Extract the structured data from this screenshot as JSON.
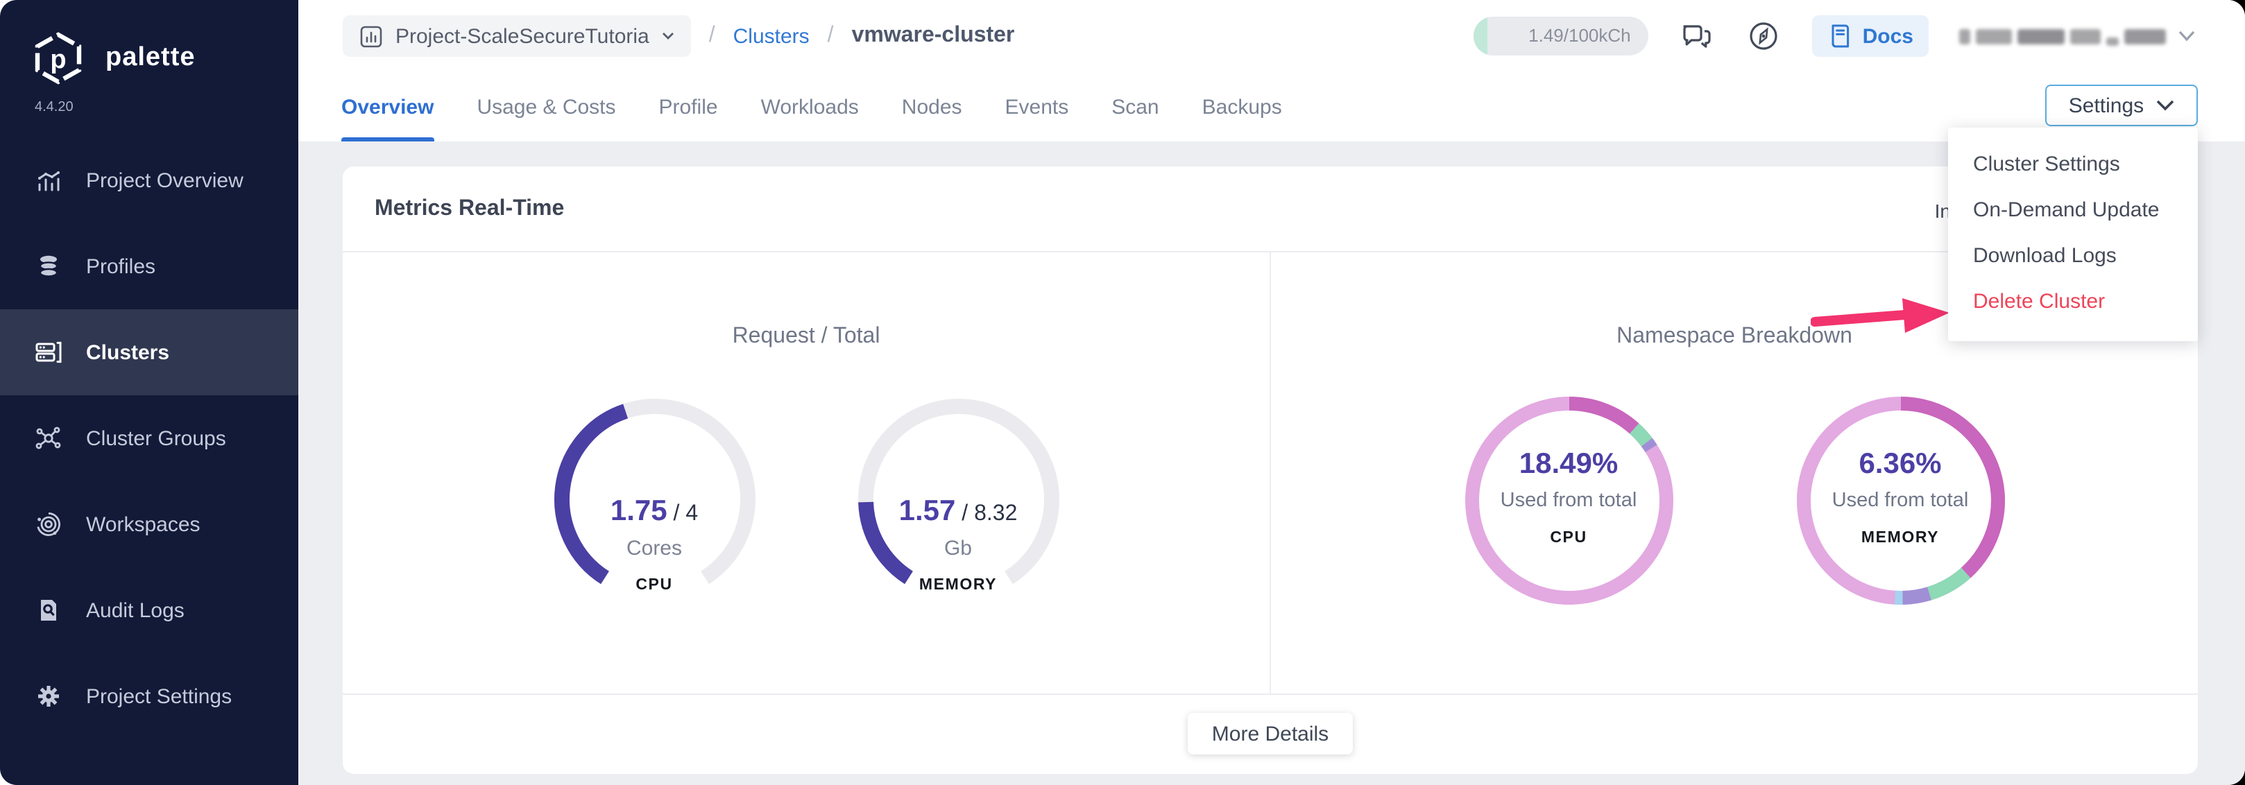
{
  "app": {
    "logo_text": "palette",
    "logo_letter": "p",
    "version": "4.4.20"
  },
  "sidebar": {
    "items": [
      {
        "label": "Project Overview",
        "icon": "bar-chart-icon"
      },
      {
        "label": "Profiles",
        "icon": "layers-icon"
      },
      {
        "label": "Clusters",
        "icon": "servers-icon"
      },
      {
        "label": "Cluster Groups",
        "icon": "nodes-icon"
      },
      {
        "label": "Workspaces",
        "icon": "orbit-icon"
      },
      {
        "label": "Audit Logs",
        "icon": "doc-search-icon"
      },
      {
        "label": "Project Settings",
        "icon": "gear-icon"
      }
    ],
    "active": "Clusters"
  },
  "topbar": {
    "breadcrumb": {
      "project": "Project-ScaleSecureTutoria",
      "sep": "/",
      "section": "Clusters",
      "cluster": "vmware-cluster"
    },
    "usage": "1.49/100kCh",
    "docs_label": "Docs"
  },
  "tabs": {
    "items": [
      "Overview",
      "Usage & Costs",
      "Profile",
      "Workloads",
      "Nodes",
      "Events",
      "Scan",
      "Backups"
    ],
    "active": "Overview"
  },
  "settings": {
    "button_label": "Settings",
    "menu": [
      {
        "label": "Cluster Settings",
        "danger": false
      },
      {
        "label": "On-Demand Update",
        "danger": false
      },
      {
        "label": "Download Logs",
        "danger": false
      },
      {
        "label": "Delete Cluster",
        "danger": true
      }
    ]
  },
  "metrics": {
    "card_title": "Metrics Real-Time",
    "partial_right_text": "In",
    "more_details_label": "More Details",
    "left_panel": {
      "title": "Request / Total",
      "gauges": [
        {
          "value": "1.75",
          "divider": "/",
          "total": "4",
          "unit": "Cores",
          "label": "CPU",
          "fraction": 0.4375
        },
        {
          "value": "1.57",
          "divider": "/",
          "total": "8.32",
          "unit": "Gb",
          "label": "MEMORY",
          "fraction": 0.189
        }
      ]
    },
    "right_panel": {
      "title": "Namespace Breakdown",
      "donuts": [
        {
          "percent": "18.49%",
          "subtitle": "Used from total",
          "label": "CPU",
          "segments": [
            {
              "color_key": "donut_magenta",
              "from": 0,
              "to": 42
            },
            {
              "color_key": "donut_green",
              "from": 42,
              "to": 53
            },
            {
              "color_key": "donut_lavender",
              "from": 53,
              "to": 57.5
            }
          ]
        },
        {
          "percent": "6.36%",
          "subtitle": "Used from total",
          "label": "MEMORY",
          "segments": [
            {
              "color_key": "donut_magenta",
              "from": 0,
              "to": 138
            },
            {
              "color_key": "donut_green",
              "from": 138,
              "to": 163
            },
            {
              "color_key": "donut_lavender",
              "from": 163,
              "to": 179
            },
            {
              "color_key": "donut_blue",
              "from": 179,
              "to": 183.5
            }
          ]
        }
      ]
    }
  },
  "colors": {
    "accent_blue": "#2e6fd2",
    "gauge_fill": "#4a3fa3",
    "gauge_track": "#ebebef",
    "indigo_text": "#4b3fa5",
    "donut_base": "#e3a9e1",
    "donut_magenta": "#c966bd",
    "donut_green": "#8ed9b6",
    "donut_lavender": "#a18fd6",
    "donut_blue": "#a5d3f0",
    "danger": "#ee4458",
    "arrow_pink": "#f2336e"
  }
}
